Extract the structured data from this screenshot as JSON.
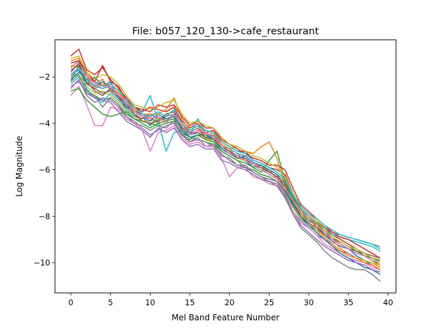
{
  "chart_data": {
    "type": "line",
    "title": "File: b057_120_130->cafe_restaurant",
    "xlabel": "Mel Band Feature Number",
    "ylabel": "Log Magnitude",
    "xlim": [
      -2,
      41
    ],
    "ylim": [
      -11.3,
      -0.4
    ],
    "xticks": [
      0,
      5,
      10,
      15,
      20,
      25,
      30,
      35,
      40
    ],
    "yticks": [
      -10,
      -8,
      -6,
      -4,
      -2
    ],
    "grid": false,
    "legend": "none",
    "x": [
      0,
      1,
      2,
      3,
      4,
      5,
      6,
      7,
      8,
      9,
      10,
      11,
      12,
      13,
      14,
      15,
      16,
      17,
      18,
      19,
      20,
      21,
      22,
      23,
      24,
      25,
      26,
      27,
      28,
      29,
      30,
      31,
      32,
      33,
      34,
      35,
      36,
      37,
      38,
      39
    ],
    "series": [
      {
        "color": "#1f77b4",
        "values": [
          -1.9,
          -1.7,
          -2.3,
          -2.0,
          -2.4,
          -2.2,
          -2.9,
          -3.3,
          -3.4,
          -3.7,
          -4.1,
          -3.7,
          -3.9,
          -3.6,
          -4.2,
          -4.5,
          -4.4,
          -4.6,
          -4.6,
          -5.1,
          -5.3,
          -5.4,
          -5.6,
          -5.9,
          -5.8,
          -6.1,
          -6.3,
          -6.6,
          -7.2,
          -7.9,
          -8.2,
          -8.4,
          -8.8,
          -9.1,
          -9.3,
          -9.4,
          -9.7,
          -9.9,
          -10.1,
          -10.3
        ]
      },
      {
        "color": "#ff7f0e",
        "values": [
          -1.3,
          -1.2,
          -1.9,
          -2.3,
          -2.1,
          -2.6,
          -2.7,
          -3.1,
          -3.6,
          -3.8,
          -3.7,
          -4.0,
          -3.6,
          -3.5,
          -4.0,
          -4.4,
          -4.2,
          -4.7,
          -4.5,
          -5.0,
          -5.1,
          -5.5,
          -5.4,
          -5.7,
          -5.9,
          -6.0,
          -6.4,
          -6.9,
          -7.5,
          -7.8,
          -8.0,
          -8.3,
          -8.7,
          -9.0,
          -9.4,
          -9.6,
          -9.8,
          -9.9,
          -10.0,
          -10.2
        ]
      },
      {
        "color": "#2ca02c",
        "values": [
          -2.2,
          -1.5,
          -2.6,
          -2.8,
          -3.0,
          -2.9,
          -3.2,
          -3.6,
          -3.8,
          -3.9,
          -4.0,
          -4.1,
          -4.0,
          -3.9,
          -4.4,
          -4.6,
          -4.7,
          -4.8,
          -4.9,
          -5.2,
          -5.4,
          -5.6,
          -5.9,
          -6.0,
          -6.2,
          -6.3,
          -6.5,
          -6.9,
          -7.6,
          -8.1,
          -8.4,
          -8.6,
          -8.8,
          -9.0,
          -9.1,
          -9.3,
          -9.5,
          -9.6,
          -9.8,
          -10.0
        ]
      },
      {
        "color": "#d62728",
        "values": [
          -1.1,
          -0.8,
          -1.7,
          -1.9,
          -1.6,
          -2.1,
          -2.5,
          -2.9,
          -3.3,
          -3.5,
          -3.3,
          -3.4,
          -3.5,
          -3.3,
          -3.9,
          -4.2,
          -4.0,
          -4.4,
          -4.3,
          -4.8,
          -5.0,
          -5.2,
          -5.2,
          -5.6,
          -5.7,
          -5.9,
          -6.0,
          -6.2,
          -7.0,
          -7.6,
          -7.9,
          -8.2,
          -8.5,
          -8.8,
          -9.0,
          -9.2,
          -9.4,
          -9.6,
          -9.8,
          -9.9
        ]
      },
      {
        "color": "#9467bd",
        "values": [
          -2.5,
          -2.1,
          -2.8,
          -3.1,
          -2.9,
          -3.0,
          -3.3,
          -3.7,
          -3.9,
          -4.2,
          -4.5,
          -4.3,
          -4.1,
          -4.0,
          -4.5,
          -4.8,
          -4.6,
          -5.0,
          -4.9,
          -5.4,
          -5.5,
          -5.8,
          -5.8,
          -6.1,
          -6.3,
          -6.4,
          -6.5,
          -7.0,
          -7.8,
          -8.2,
          -8.5,
          -8.8,
          -9.0,
          -9.2,
          -9.5,
          -9.6,
          -9.8,
          -10.0,
          -10.1,
          -10.3
        ]
      },
      {
        "color": "#8c564b",
        "values": [
          -1.8,
          -1.4,
          -2.2,
          -2.6,
          -2.8,
          -2.5,
          -2.8,
          -3.4,
          -3.7,
          -3.8,
          -3.6,
          -3.8,
          -3.8,
          -3.7,
          -4.3,
          -4.5,
          -4.3,
          -4.5,
          -4.6,
          -5.0,
          -5.2,
          -5.4,
          -5.5,
          -5.8,
          -6.0,
          -6.2,
          -6.4,
          -6.7,
          -7.3,
          -7.8,
          -8.1,
          -8.4,
          -8.7,
          -8.9,
          -9.2,
          -9.4,
          -9.6,
          -9.7,
          -9.9,
          -10.1
        ]
      },
      {
        "color": "#e377c2",
        "values": [
          -2.8,
          -2.4,
          -3.2,
          -4.1,
          -4.1,
          -3.3,
          -3.4,
          -3.8,
          -4.0,
          -4.3,
          -5.2,
          -4.4,
          -4.3,
          -4.1,
          -4.6,
          -4.9,
          -4.8,
          -5.0,
          -5.0,
          -5.5,
          -6.3,
          -5.9,
          -5.9,
          -6.3,
          -6.4,
          -6.6,
          -6.7,
          -7.1,
          -7.8,
          -8.3,
          -8.5,
          -8.8,
          -9.2,
          -9.4,
          -9.6,
          -9.8,
          -9.9,
          -10.0,
          -10.2,
          -10.3
        ]
      },
      {
        "color": "#7f7f7f",
        "values": [
          -1.6,
          -1.3,
          -2.0,
          -2.2,
          -2.4,
          -2.3,
          -2.6,
          -3.0,
          -3.5,
          -3.6,
          -3.8,
          -3.9,
          -3.7,
          -3.6,
          -4.1,
          -4.4,
          -4.2,
          -4.5,
          -4.5,
          -4.9,
          -5.1,
          -5.3,
          -5.4,
          -5.7,
          -5.8,
          -6.0,
          -6.2,
          -6.5,
          -7.1,
          -7.7,
          -8.0,
          -8.3,
          -8.5,
          -8.7,
          -8.8,
          -8.9,
          -9.0,
          -9.1,
          -9.2,
          -9.3
        ]
      },
      {
        "color": "#bcbd22",
        "values": [
          -2.0,
          -1.9,
          -2.4,
          -2.7,
          -2.6,
          -2.8,
          -3.1,
          -3.5,
          -3.6,
          -3.9,
          -3.9,
          -3.8,
          -3.9,
          -3.7,
          -4.2,
          -4.6,
          -4.5,
          -4.6,
          -4.8,
          -5.1,
          -5.3,
          -5.5,
          -5.6,
          -5.8,
          -6.0,
          -6.1,
          -6.3,
          -6.8,
          -7.4,
          -7.9,
          -8.3,
          -8.6,
          -9.0,
          -9.3,
          -9.5,
          -9.7,
          -9.8,
          -9.9,
          -10.0,
          -10.1
        ]
      },
      {
        "color": "#17becf",
        "values": [
          -2.3,
          -2.0,
          -2.5,
          -2.9,
          -3.1,
          -2.7,
          -3.0,
          -3.4,
          -3.7,
          -3.5,
          -2.8,
          -3.9,
          -5.2,
          -4.4,
          -4.3,
          -4.5,
          -3.8,
          -4.4,
          -4.7,
          -5.0,
          -5.1,
          -5.3,
          -5.6,
          -5.8,
          -5.9,
          -6.1,
          -6.3,
          -6.6,
          -7.3,
          -7.8,
          -8.1,
          -8.3,
          -8.6,
          -8.8,
          -8.9,
          -9.0,
          -9.1,
          -9.2,
          -9.3,
          -9.5
        ]
      },
      {
        "color": "#1f77b4",
        "values": [
          -2.1,
          -1.8,
          -2.1,
          -2.4,
          -2.2,
          -2.5,
          -2.8,
          -3.2,
          -3.5,
          -3.7,
          -3.9,
          -3.6,
          -3.8,
          -3.7,
          -4.3,
          -4.6,
          -4.5,
          -4.5,
          -4.7,
          -5.1,
          -5.3,
          -5.5,
          -5.4,
          -5.7,
          -5.8,
          -6.0,
          -6.2,
          -6.8,
          -7.5,
          -8.0,
          -8.4,
          -8.7,
          -9.0,
          -9.3,
          -9.6,
          -9.8,
          -10.0,
          -10.2,
          -10.3,
          -10.5
        ]
      },
      {
        "color": "#ff7f0e",
        "values": [
          -1.5,
          -1.6,
          -2.0,
          -2.5,
          -2.3,
          -2.4,
          -2.7,
          -3.0,
          -3.4,
          -3.6,
          -3.6,
          -3.6,
          -3.4,
          -2.9,
          -3.8,
          -4.3,
          -4.1,
          -4.5,
          -4.4,
          -4.9,
          -5.1,
          -5.0,
          -5.2,
          -5.3,
          -5.0,
          -4.8,
          -5.5,
          -6.7,
          -7.4,
          -7.9,
          -8.1,
          -8.5,
          -8.9,
          -9.2,
          -9.5,
          -9.7,
          -9.8,
          -10.0,
          -10.1,
          -10.3
        ]
      },
      {
        "color": "#2ca02c",
        "values": [
          -2.6,
          -2.5,
          -3.0,
          -3.3,
          -3.6,
          -3.7,
          -3.6,
          -3.5,
          -3.8,
          -4.0,
          -4.2,
          -4.0,
          -3.9,
          -3.8,
          -4.5,
          -4.7,
          -4.5,
          -4.7,
          -4.8,
          -5.2,
          -5.4,
          -5.6,
          -5.7,
          -5.9,
          -6.1,
          -5.6,
          -5.2,
          -6.5,
          -7.2,
          -7.7,
          -8.0,
          -8.3,
          -8.6,
          -8.9,
          -9.1,
          -9.3,
          -9.5,
          -9.7,
          -9.8,
          -9.9
        ]
      },
      {
        "color": "#d62728",
        "values": [
          -1.4,
          -1.3,
          -1.8,
          -2.2,
          -1.5,
          -2.2,
          -2.4,
          -3.0,
          -3.3,
          -3.4,
          -3.5,
          -3.2,
          -3.3,
          -3.2,
          -3.7,
          -4.1,
          -3.9,
          -4.2,
          -4.2,
          -4.7,
          -4.9,
          -5.1,
          -5.3,
          -5.5,
          -5.6,
          -5.8,
          -5.8,
          -6.0,
          -6.8,
          -7.5,
          -7.8,
          -8.1,
          -8.4,
          -8.7,
          -8.9,
          -9.0,
          -9.2,
          -9.4,
          -9.6,
          -9.8
        ]
      },
      {
        "color": "#9467bd",
        "values": [
          -2.4,
          -2.2,
          -2.7,
          -2.9,
          -3.0,
          -3.1,
          -3.5,
          -3.9,
          -4.1,
          -4.3,
          -4.6,
          -4.2,
          -4.4,
          -4.2,
          -4.7,
          -5.0,
          -4.9,
          -5.1,
          -5.1,
          -5.6,
          -5.7,
          -5.9,
          -6.0,
          -6.2,
          -6.4,
          -6.5,
          -6.7,
          -7.2,
          -7.9,
          -8.4,
          -8.7,
          -9.0,
          -9.3,
          -9.5,
          -9.7,
          -9.9,
          -10.0,
          -10.1,
          -10.3,
          -10.4
        ]
      },
      {
        "color": "#8c564b",
        "values": [
          -1.7,
          -1.5,
          -2.3,
          -2.5,
          -2.7,
          -2.6,
          -2.9,
          -3.3,
          -3.6,
          -3.9,
          -4.0,
          -3.9,
          -3.6,
          -3.5,
          -4.2,
          -4.4,
          -4.4,
          -4.6,
          -4.7,
          -5.0,
          -5.2,
          -5.5,
          -5.5,
          -5.8,
          -5.9,
          -6.1,
          -6.3,
          -6.6,
          -7.4,
          -8.0,
          -8.3,
          -8.5,
          -8.8,
          -9.0,
          -9.2,
          -9.4,
          -9.5,
          -9.6,
          -9.7,
          -9.8
        ]
      },
      {
        "color": "#e377c2",
        "values": [
          -1.9,
          -1.6,
          -2.0,
          -2.3,
          -2.5,
          -2.4,
          -2.8,
          -3.1,
          -3.5,
          -3.7,
          -3.8,
          -3.7,
          -4.0,
          -3.6,
          -4.1,
          -4.5,
          -4.3,
          -4.4,
          -4.6,
          -5.0,
          -5.3,
          -5.4,
          -5.6,
          -5.8,
          -6.0,
          -6.2,
          -6.4,
          -6.8,
          -7.3,
          -7.8,
          -8.0,
          -8.4,
          -8.7,
          -9.0,
          -9.2,
          -9.4,
          -9.6,
          -9.7,
          -9.9,
          -10.0
        ]
      },
      {
        "color": "#7f7f7f",
        "values": [
          -2.2,
          -1.9,
          -2.7,
          -2.8,
          -3.3,
          -2.9,
          -3.2,
          -3.7,
          -4.0,
          -4.1,
          -4.3,
          -4.1,
          -4.2,
          -3.9,
          -4.4,
          -4.8,
          -4.7,
          -4.8,
          -5.0,
          -5.3,
          -5.6,
          -5.8,
          -5.9,
          -6.1,
          -6.3,
          -6.5,
          -6.6,
          -7.1,
          -7.9,
          -8.5,
          -8.8,
          -9.1,
          -9.5,
          -9.8,
          -10.0,
          -10.2,
          -10.3,
          -10.3,
          -10.5,
          -10.8
        ]
      },
      {
        "color": "#bcbd22",
        "values": [
          -1.2,
          -1.1,
          -1.8,
          -2.1,
          -1.9,
          -2.0,
          -2.3,
          -2.8,
          -3.2,
          -3.3,
          -3.4,
          -3.3,
          -3.1,
          -3.0,
          -3.6,
          -4.0,
          -3.9,
          -4.1,
          -4.2,
          -4.6,
          -4.9,
          -5.0,
          -5.2,
          -5.4,
          -5.5,
          -5.7,
          -5.9,
          -6.3,
          -7.0,
          -7.6,
          -7.9,
          -8.2,
          -8.6,
          -8.9,
          -9.1,
          -9.3,
          -9.4,
          -9.6,
          -9.8,
          -10.0
        ]
      },
      {
        "color": "#17becf",
        "values": [
          -2.0,
          -1.6,
          -2.2,
          -2.4,
          -2.5,
          -2.3,
          -2.6,
          -3.0,
          -3.3,
          -3.6,
          -3.7,
          -3.5,
          -3.7,
          -3.4,
          -4.0,
          -4.3,
          -4.1,
          -4.3,
          -4.4,
          -4.8,
          -5.0,
          -5.2,
          -5.3,
          -5.6,
          -5.7,
          -5.9,
          -6.1,
          -6.4,
          -7.1,
          -7.6,
          -7.9,
          -8.1,
          -8.4,
          -8.6,
          -8.8,
          -8.9,
          -9.0,
          -9.1,
          -9.2,
          -9.4
        ]
      }
    ]
  }
}
